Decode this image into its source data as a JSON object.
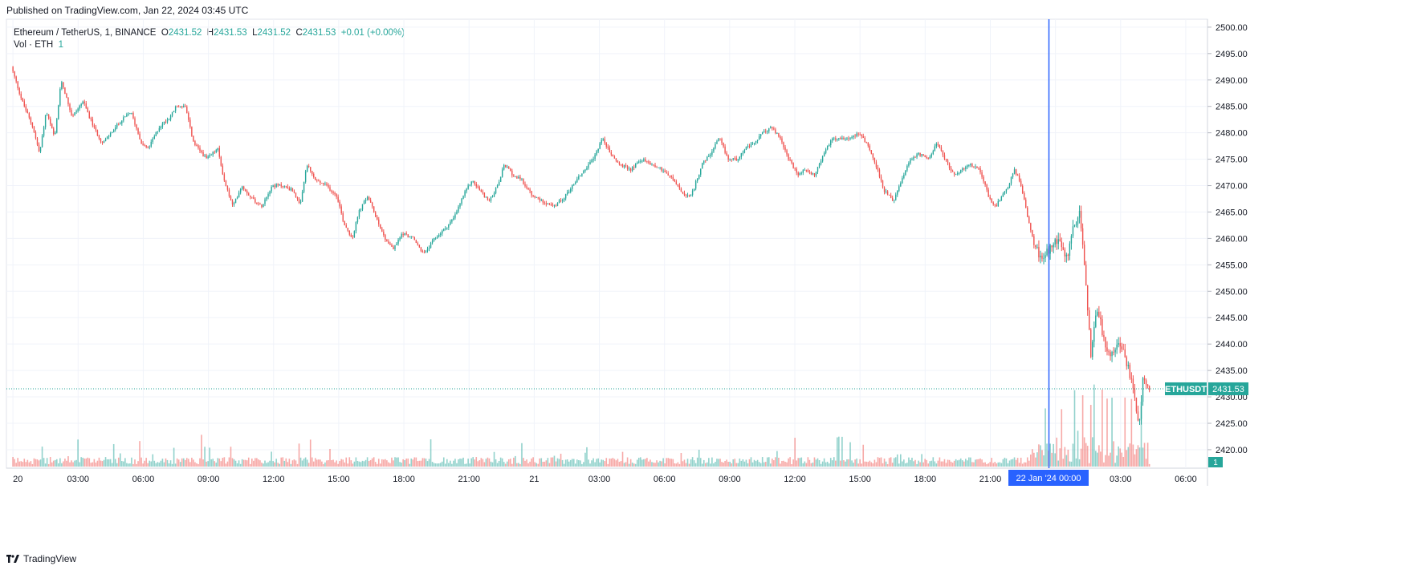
{
  "published_line": "Published on TradingView.com, Jan 22, 2024 03:45 UTC",
  "footer_brand": "TradingView",
  "colors": {
    "up": "#26a69a",
    "down": "#ef5350",
    "crosshair": "#2962ff",
    "grid": "#f0f3fa",
    "price_line": "#26a69a"
  },
  "legend": {
    "symbol": "Ethereum / TetherUS, 1, BINANCE",
    "o_label": "O",
    "o_value": "2431.52",
    "h_label": "H",
    "h_value": "2431.53",
    "l_label": "L",
    "l_value": "2431.52",
    "c_label": "C",
    "c_value": "2431.53",
    "change": "+0.01 (+0.00%)",
    "vol_label": "Vol · ETH",
    "vol_value": "1"
  },
  "chart_data": {
    "type": "candlestick",
    "symbol": "ETHUSDT",
    "interval": "1 minute",
    "exchange": "BINANCE",
    "last_price": 2431.53,
    "last_price_label": "2431.53",
    "price_tag_symbol": "ETHUSDT",
    "volume_tag": "1",
    "crosshair_label": "22 Jan '24  00:00",
    "ylim": [
      2416.5,
      2501.5
    ],
    "y_ticks": [
      "2500.00",
      "2495.00",
      "2490.00",
      "2485.00",
      "2480.00",
      "2475.00",
      "2470.00",
      "2465.00",
      "2460.00",
      "2455.00",
      "2450.00",
      "2445.00",
      "2440.00",
      "2435.00",
      "2430.00",
      "2425.00",
      "2420.00"
    ],
    "x_ticks": [
      "20",
      "03:00",
      "06:00",
      "09:00",
      "12:00",
      "15:00",
      "18:00",
      "21:00",
      "21",
      "03:00",
      "06:00",
      "09:00",
      "12:00",
      "15:00",
      "18:00",
      "21:00",
      "00:00",
      "03:00",
      "06:00"
    ],
    "x_tick_hours": [
      0,
      3,
      6,
      9,
      12,
      15,
      18,
      21,
      24,
      27,
      30,
      33,
      36,
      39,
      42,
      45,
      48,
      51,
      54
    ],
    "crosshair_hour": 47.7,
    "price_path": [
      [
        0.0,
        2492.5
      ],
      [
        0.5,
        2486
      ],
      [
        1.0,
        2481
      ],
      [
        1.3,
        2476
      ],
      [
        1.6,
        2484
      ],
      [
        2.0,
        2479
      ],
      [
        2.3,
        2490
      ],
      [
        2.8,
        2483
      ],
      [
        3.3,
        2486
      ],
      [
        3.8,
        2481
      ],
      [
        4.2,
        2478
      ],
      [
        4.6,
        2480
      ],
      [
        5.0,
        2482
      ],
      [
        5.5,
        2484
      ],
      [
        6.0,
        2478
      ],
      [
        6.3,
        2477
      ],
      [
        6.8,
        2481
      ],
      [
        7.3,
        2483
      ],
      [
        7.6,
        2485
      ],
      [
        8.0,
        2485
      ],
      [
        8.4,
        2478
      ],
      [
        9.0,
        2475
      ],
      [
        9.5,
        2477
      ],
      [
        9.8,
        2471
      ],
      [
        10.2,
        2466
      ],
      [
        10.6,
        2470
      ],
      [
        11.0,
        2468
      ],
      [
        11.5,
        2466
      ],
      [
        12.0,
        2470
      ],
      [
        12.5,
        2470
      ],
      [
        13.0,
        2469
      ],
      [
        13.3,
        2466
      ],
      [
        13.6,
        2474
      ],
      [
        14.0,
        2471
      ],
      [
        14.5,
        2470
      ],
      [
        15.0,
        2468
      ],
      [
        15.3,
        2463
      ],
      [
        15.7,
        2460
      ],
      [
        16.0,
        2465
      ],
      [
        16.4,
        2468
      ],
      [
        16.8,
        2464
      ],
      [
        17.2,
        2460
      ],
      [
        17.6,
        2458
      ],
      [
        18.0,
        2461
      ],
      [
        18.5,
        2460
      ],
      [
        19.0,
        2457
      ],
      [
        19.5,
        2460
      ],
      [
        20.0,
        2462
      ],
      [
        20.4,
        2464
      ],
      [
        20.8,
        2468
      ],
      [
        21.2,
        2471
      ],
      [
        21.6,
        2469
      ],
      [
        22.0,
        2467
      ],
      [
        22.4,
        2470
      ],
      [
        22.7,
        2474
      ],
      [
        23.1,
        2472
      ],
      [
        23.5,
        2471
      ],
      [
        24.0,
        2468
      ],
      [
        24.5,
        2467
      ],
      [
        25.0,
        2466
      ],
      [
        25.5,
        2468
      ],
      [
        26.0,
        2471
      ],
      [
        26.4,
        2473
      ],
      [
        26.8,
        2475
      ],
      [
        27.2,
        2479
      ],
      [
        27.6,
        2476
      ],
      [
        28.0,
        2474
      ],
      [
        28.5,
        2473
      ],
      [
        29.0,
        2475
      ],
      [
        29.5,
        2474
      ],
      [
        30.0,
        2473
      ],
      [
        30.5,
        2471
      ],
      [
        31.0,
        2468
      ],
      [
        31.3,
        2468
      ],
      [
        31.8,
        2474
      ],
      [
        32.2,
        2476
      ],
      [
        32.6,
        2479
      ],
      [
        33.0,
        2475
      ],
      [
        33.4,
        2475
      ],
      [
        33.8,
        2477
      ],
      [
        34.2,
        2478
      ],
      [
        34.6,
        2480
      ],
      [
        35.0,
        2481
      ],
      [
        35.4,
        2479
      ],
      [
        35.8,
        2475
      ],
      [
        36.2,
        2472
      ],
      [
        36.6,
        2473
      ],
      [
        37.0,
        2472
      ],
      [
        37.4,
        2476
      ],
      [
        37.8,
        2479
      ],
      [
        38.2,
        2479
      ],
      [
        38.6,
        2479
      ],
      [
        39.0,
        2480
      ],
      [
        39.4,
        2478
      ],
      [
        39.8,
        2474
      ],
      [
        40.2,
        2469
      ],
      [
        40.6,
        2467
      ],
      [
        41.0,
        2471
      ],
      [
        41.4,
        2475
      ],
      [
        41.8,
        2476
      ],
      [
        42.2,
        2475
      ],
      [
        42.6,
        2478
      ],
      [
        43.0,
        2475
      ],
      [
        43.4,
        2472
      ],
      [
        43.8,
        2473
      ],
      [
        44.2,
        2474
      ],
      [
        44.6,
        2473
      ],
      [
        45.0,
        2468
      ],
      [
        45.3,
        2466
      ],
      [
        45.8,
        2469
      ],
      [
        46.2,
        2473
      ],
      [
        46.5,
        2470
      ],
      [
        46.8,
        2464
      ],
      [
        47.1,
        2459
      ],
      [
        47.4,
        2456
      ],
      [
        47.8,
        2458
      ],
      [
        48.2,
        2460
      ],
      [
        48.6,
        2456
      ],
      [
        48.9,
        2462
      ],
      [
        49.2,
        2465
      ],
      [
        49.5,
        2450
      ],
      [
        49.7,
        2438
      ],
      [
        50.0,
        2447
      ],
      [
        50.3,
        2441
      ],
      [
        50.6,
        2437
      ],
      [
        51.0,
        2441
      ],
      [
        51.3,
        2437
      ],
      [
        51.6,
        2433
      ],
      [
        51.8,
        2427
      ],
      [
        51.95,
        2425
      ],
      [
        52.1,
        2433
      ],
      [
        52.4,
        2431.5
      ]
    ]
  }
}
